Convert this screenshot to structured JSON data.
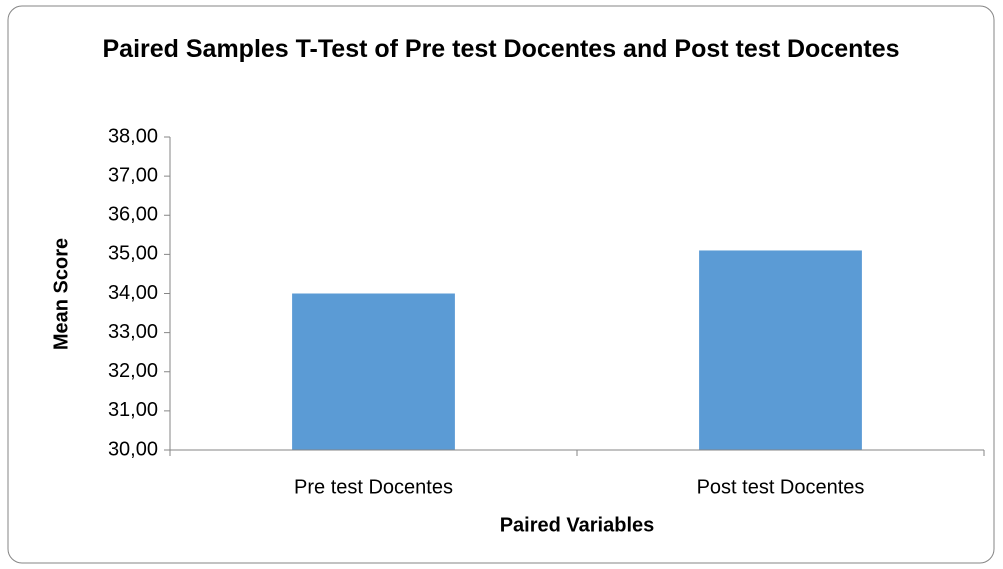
{
  "chart_data": {
    "type": "bar",
    "title": "Paired Samples T-Test of Pre test Docentes and Post test Docentes",
    "x_label": "Paired Variables",
    "y_label": "Mean Score",
    "categories": [
      "Pre test Docentes",
      "Post test Docentes"
    ],
    "values": [
      34.0,
      35.1
    ],
    "color": "#5b9bd5",
    "ylim": [
      30,
      38
    ],
    "yticks": [
      {
        "value": 30,
        "label": "30,00"
      },
      {
        "value": 31,
        "label": "31,00"
      },
      {
        "value": 32,
        "label": "32,00"
      },
      {
        "value": 33,
        "label": "33,00"
      },
      {
        "value": 34,
        "label": "34,00"
      },
      {
        "value": 35,
        "label": "35,00"
      },
      {
        "value": 36,
        "label": "36,00"
      },
      {
        "value": 37,
        "label": "37,00"
      },
      {
        "value": 38,
        "label": "38,00"
      }
    ],
    "grid": false
  }
}
